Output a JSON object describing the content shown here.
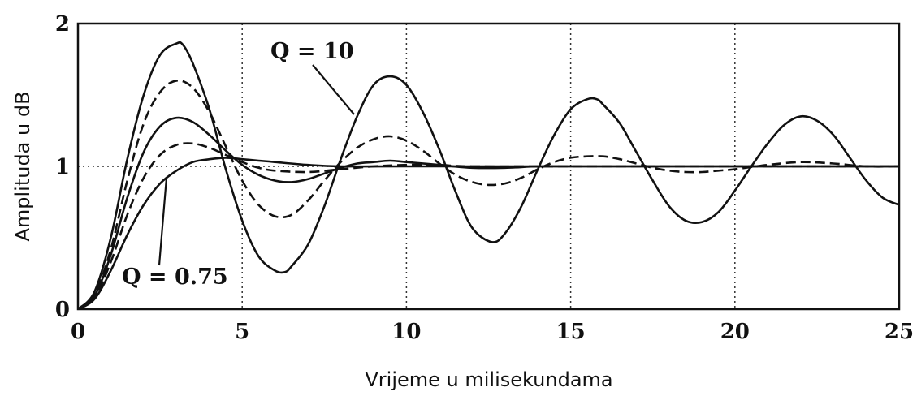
{
  "chart_data": {
    "type": "line",
    "xlabel": "Vrijeme u milisekundama",
    "ylabel": "Amplituda u dB",
    "xlim": [
      0,
      25
    ],
    "ylim": [
      0,
      2
    ],
    "x_ticks": [
      0,
      5,
      10,
      15,
      20,
      25
    ],
    "y_ticks": [
      0,
      1,
      2
    ],
    "grid": {
      "vertical_dotted_at": [
        5,
        10,
        15,
        20
      ],
      "horizontal_dotted_at": [
        1
      ]
    },
    "legend": "none",
    "annotations": [
      {
        "text": "Q = 10",
        "points_to_x": 8.4,
        "points_to_y": 1.38
      },
      {
        "text": "Q = 0.75",
        "points_to_x": 2.7,
        "points_to_y": 0.93
      }
    ],
    "series": [
      {
        "style": "solid",
        "x": [
          0,
          0.5,
          1,
          1.5,
          2,
          2.5,
          3,
          3.2,
          3.5,
          4,
          4.5,
          5,
          5.5,
          6,
          6.3,
          6.5,
          7,
          7.5,
          8,
          8.5,
          9,
          9.5,
          10,
          10.5,
          11,
          11.5,
          12,
          12.6,
          13,
          13.5,
          14,
          14.5,
          15,
          15.5,
          15.8,
          16,
          16.5,
          17,
          17.5,
          18,
          18.5,
          19,
          19.5,
          20,
          20.5,
          21,
          21.5,
          22,
          22.5,
          23,
          23.5,
          24,
          24.5,
          25
        ],
        "y": [
          0,
          0.12,
          0.5,
          1.05,
          1.5,
          1.78,
          1.86,
          1.85,
          1.72,
          1.4,
          0.98,
          0.62,
          0.37,
          0.27,
          0.26,
          0.3,
          0.45,
          0.72,
          1.05,
          1.35,
          1.57,
          1.63,
          1.57,
          1.38,
          1.12,
          0.82,
          0.57,
          0.47,
          0.53,
          0.72,
          0.98,
          1.22,
          1.4,
          1.47,
          1.47,
          1.43,
          1.3,
          1.1,
          0.9,
          0.72,
          0.62,
          0.61,
          0.68,
          0.83,
          1.0,
          1.16,
          1.29,
          1.35,
          1.32,
          1.22,
          1.06,
          0.9,
          0.78,
          0.73
        ]
      },
      {
        "style": "dashed",
        "x": [
          0,
          0.5,
          1,
          1.5,
          2,
          2.5,
          3,
          3.5,
          4,
          4.5,
          5,
          5.5,
          6,
          6.5,
          7,
          7.5,
          8,
          8.5,
          9,
          9.5,
          10,
          10.5,
          11,
          11.5,
          12,
          12.5,
          13,
          13.5,
          14,
          14.5,
          15,
          15.5,
          16,
          16.5,
          17,
          17.5,
          18,
          18.5,
          19,
          19.5,
          20,
          21,
          22,
          23,
          24,
          25
        ],
        "y": [
          0,
          0.1,
          0.42,
          0.9,
          1.3,
          1.52,
          1.6,
          1.55,
          1.38,
          1.14,
          0.9,
          0.73,
          0.65,
          0.66,
          0.76,
          0.9,
          1.03,
          1.13,
          1.19,
          1.21,
          1.18,
          1.11,
          1.02,
          0.94,
          0.89,
          0.87,
          0.88,
          0.92,
          0.98,
          1.03,
          1.06,
          1.07,
          1.07,
          1.05,
          1.02,
          0.99,
          0.97,
          0.96,
          0.96,
          0.97,
          0.98,
          1.01,
          1.03,
          1.02,
          1.0,
          1.0
        ]
      },
      {
        "style": "solid",
        "x": [
          0,
          0.5,
          1,
          1.5,
          2,
          2.5,
          3,
          3.5,
          4,
          4.5,
          5,
          5.5,
          6,
          6.5,
          7,
          7.5,
          8,
          8.5,
          9,
          9.5,
          10,
          11,
          12,
          13,
          14,
          15,
          17,
          20,
          25
        ],
        "y": [
          0,
          0.09,
          0.38,
          0.78,
          1.1,
          1.28,
          1.34,
          1.31,
          1.22,
          1.11,
          1.01,
          0.94,
          0.9,
          0.89,
          0.91,
          0.95,
          0.99,
          1.02,
          1.03,
          1.04,
          1.03,
          1.01,
          0.99,
          0.99,
          1.0,
          1.0,
          1.0,
          1.0,
          1.0
        ]
      },
      {
        "style": "dashed",
        "x": [
          0,
          0.5,
          1,
          1.5,
          2,
          2.5,
          3,
          3.5,
          4,
          4.5,
          5,
          5.5,
          6,
          7,
          8,
          9,
          10,
          11,
          12,
          15,
          20,
          25
        ],
        "y": [
          0,
          0.08,
          0.33,
          0.66,
          0.92,
          1.08,
          1.15,
          1.16,
          1.13,
          1.08,
          1.03,
          0.99,
          0.97,
          0.96,
          0.98,
          1.0,
          1.01,
          1.01,
          1.0,
          1.0,
          1.0,
          1.0
        ]
      },
      {
        "style": "solid",
        "x": [
          0,
          0.5,
          1,
          1.5,
          2,
          2.5,
          3,
          3.5,
          4,
          4.5,
          5,
          5.5,
          6,
          7,
          8,
          10,
          15,
          20,
          25
        ],
        "y": [
          0,
          0.07,
          0.27,
          0.52,
          0.73,
          0.88,
          0.97,
          1.03,
          1.05,
          1.06,
          1.05,
          1.04,
          1.03,
          1.01,
          1.0,
          1.0,
          1.0,
          1.0,
          1.0
        ]
      }
    ]
  }
}
